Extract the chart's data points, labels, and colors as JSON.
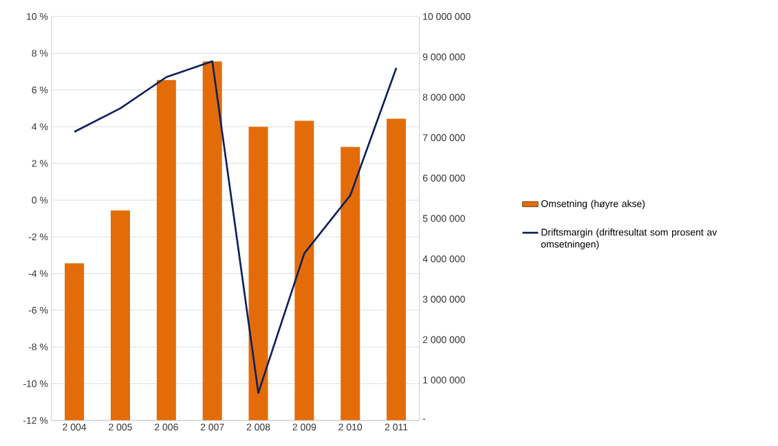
{
  "chart_data": {
    "type": "bar",
    "categories": [
      "2 004",
      "2 005",
      "2 006",
      "2 007",
      "2 008",
      "2 009",
      "2 010",
      "2 011"
    ],
    "series": [
      {
        "name": "Omsetning (høyre akse)",
        "axis": "y2",
        "color": "#e36c09",
        "values": [
          3890000,
          5200000,
          8430000,
          8890000,
          7270000,
          7420000,
          6770000,
          7470000
        ]
      },
      {
        "name": "Driftsmargin (driftresultat som prosent av omsetningen)",
        "type": "line",
        "color": "#0d1f5c",
        "values": [
          3.72,
          5.0,
          6.7,
          7.56,
          -10.5,
          -2.9,
          0.26,
          7.2
        ]
      }
    ],
    "ylim": [
      -12,
      10
    ],
    "yticks": [
      {
        "value": -12,
        "label": "-12 %"
      },
      {
        "value": -10,
        "label": "-10 %"
      },
      {
        "value": -8,
        "label": "-8 %"
      },
      {
        "value": -6,
        "label": "-6 %"
      },
      {
        "value": -4,
        "label": "-4 %"
      },
      {
        "value": -2,
        "label": "-2 %"
      },
      {
        "value": 0,
        "label": "0 %"
      },
      {
        "value": 2,
        "label": "2 %"
      },
      {
        "value": 4,
        "label": "4 %"
      },
      {
        "value": 6,
        "label": "6 %"
      },
      {
        "value": 8,
        "label": "8 %"
      },
      {
        "value": 10,
        "label": "10 %"
      }
    ],
    "y2lim": [
      0,
      10000000
    ],
    "y2ticks": [
      {
        "value": 0,
        "label": "-"
      },
      {
        "value": 1000000,
        "label": "1 000 000"
      },
      {
        "value": 2000000,
        "label": "2 000 000"
      },
      {
        "value": 3000000,
        "label": "3 000 000"
      },
      {
        "value": 4000000,
        "label": "4 000 000"
      },
      {
        "value": 5000000,
        "label": "5 000 000"
      },
      {
        "value": 6000000,
        "label": "6 000 000"
      },
      {
        "value": 7000000,
        "label": "7 000 000"
      },
      {
        "value": 8000000,
        "label": "8 000 000"
      },
      {
        "value": 9000000,
        "label": "9 000 000"
      },
      {
        "value": 10000000,
        "label": "10 000 000"
      }
    ],
    "grid": "y",
    "legend": "right",
    "marker": "none"
  }
}
